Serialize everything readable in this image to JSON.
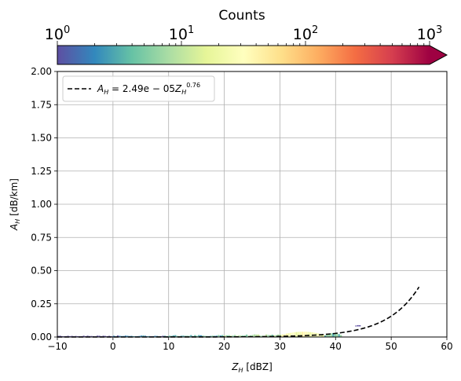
{
  "chart_data": {
    "type": "heatmap",
    "xlim": [
      -10,
      60
    ],
    "ylim": [
      0,
      2.0
    ],
    "xticks": [
      -10,
      0,
      10,
      20,
      30,
      40,
      50,
      60
    ],
    "xtick_labels": [
      "−10",
      "0",
      "10",
      "20",
      "30",
      "40",
      "50",
      "60"
    ],
    "yticks": [
      0,
      0.25,
      0.5,
      0.75,
      1.0,
      1.25,
      1.5,
      1.75,
      2.0
    ],
    "ytick_labels": [
      "0.00",
      "0.25",
      "0.50",
      "0.75",
      "1.00",
      "1.25",
      "1.50",
      "1.75",
      "2.00"
    ],
    "grid": true,
    "xlabel": {
      "base": "Z",
      "sub": "H",
      "unit": " [dBZ]"
    },
    "ylabel": {
      "base": "A",
      "sub": "H",
      "unit": " [dB/km]"
    },
    "colorbar": {
      "title": "Counts",
      "scale": "log",
      "range": [
        1,
        1000
      ],
      "extend": "max",
      "colormap": "Spectral_r",
      "ticks": [
        {
          "value": 1,
          "base": "10",
          "exp": "0"
        },
        {
          "value": 10,
          "base": "10",
          "exp": "1"
        },
        {
          "value": 100,
          "base": "10",
          "exp": "2"
        },
        {
          "value": 1000,
          "base": "10",
          "exp": "3"
        }
      ]
    },
    "fit": {
      "coefficient": 2.49e-05,
      "exponent": 0.76,
      "x_range": [
        -10,
        55
      ],
      "style": "dashed",
      "color": "#000000",
      "legend": {
        "lhs_base": "A",
        "lhs_sub": "H",
        "rhs_prefix": " = 2.49e − 05",
        "rhs_base": "Z",
        "rhs_sub": "H",
        "rhs_exp": "0.76"
      },
      "legend_loc": "upper-left"
    },
    "density": {
      "description_bins": [
        {
          "x": [
            -10,
            0
          ],
          "y": [
            0,
            0.01
          ],
          "count": 1
        },
        {
          "x": [
            0,
            10
          ],
          "y": [
            0,
            0.012
          ],
          "count": 2
        },
        {
          "x": [
            10,
            20
          ],
          "y": [
            0,
            0.015
          ],
          "count": 4
        },
        {
          "x": [
            20,
            30
          ],
          "y": [
            0,
            0.02
          ],
          "count": 8
        },
        {
          "x": [
            30,
            38
          ],
          "y": [
            0,
            0.04
          ],
          "count": 30
        },
        {
          "x": [
            38,
            41
          ],
          "y": [
            0,
            0.03
          ],
          "count": 5
        },
        {
          "x": [
            43.5,
            44.5
          ],
          "y": [
            0.08,
            0.09
          ],
          "count": 1
        }
      ]
    }
  }
}
